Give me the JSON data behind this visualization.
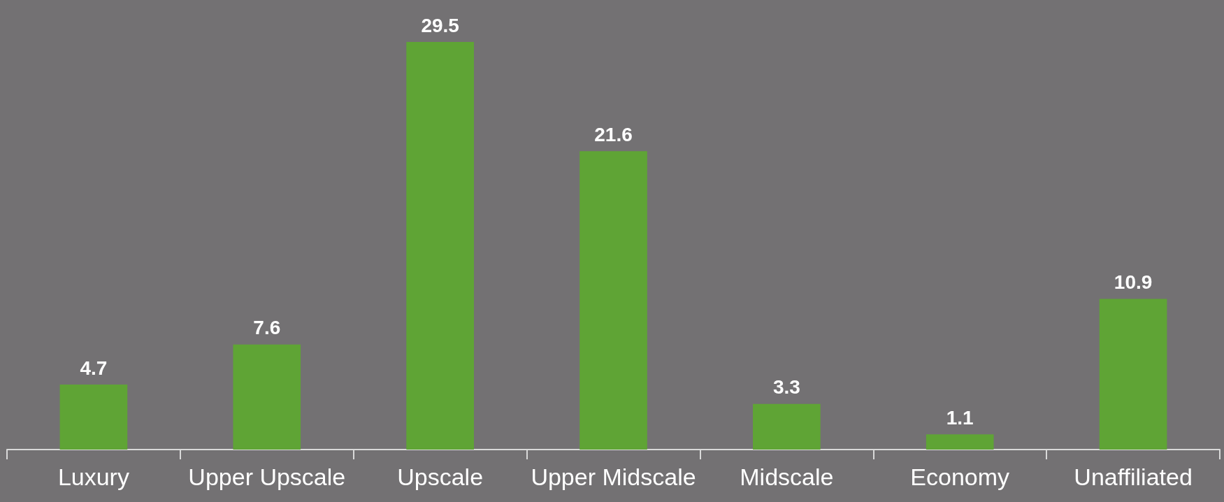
{
  "chart_data": {
    "type": "bar",
    "categories": [
      "Luxury",
      "Upper Upscale",
      "Upscale",
      "Upper Midscale",
      "Midscale",
      "Economy",
      "Unaffiliated"
    ],
    "values": [
      4.7,
      7.6,
      29.5,
      21.6,
      3.3,
      1.1,
      10.9
    ],
    "color": "#5fa435",
    "data_labels": true
  }
}
